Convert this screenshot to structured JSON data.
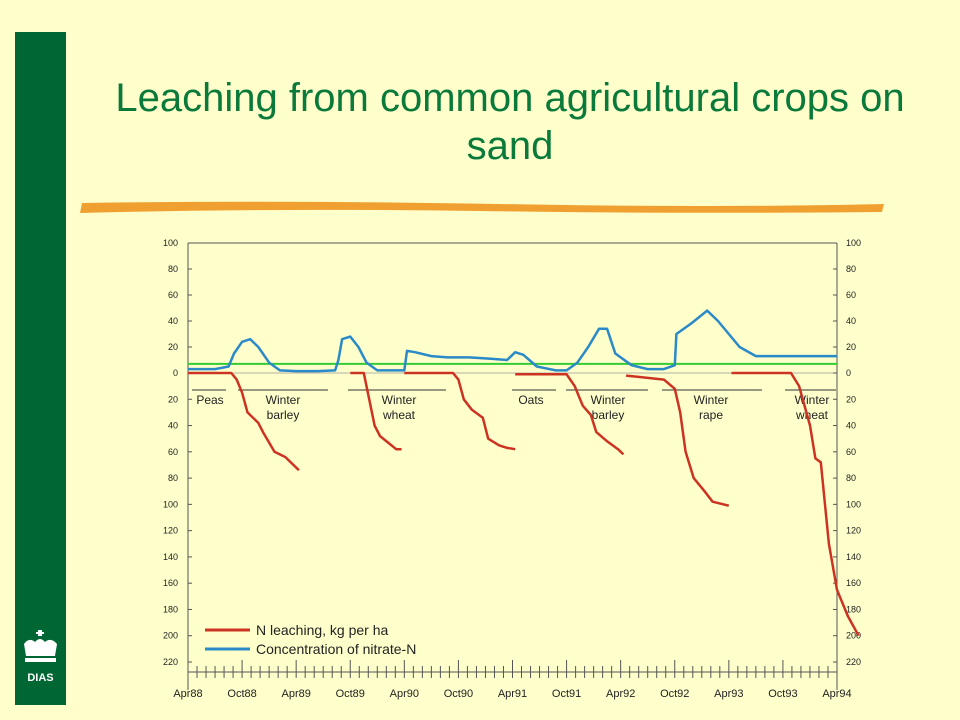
{
  "slide": {
    "title": "Leaching from common agricultural crops on sand",
    "logo_text": "DIAS"
  },
  "colors": {
    "background": "#ffffcc",
    "sidebar": "#006633",
    "title": "#0a7a3a",
    "divider": "#f0a030",
    "leaching": "#cc3322",
    "concentration": "#2a8ac8",
    "reference": "#33cc33"
  },
  "chart_data": {
    "type": "line",
    "x_tick_labels": [
      "Apr88",
      "Oct88",
      "Apr89",
      "Oct89",
      "Apr90",
      "Oct90",
      "Apr91",
      "Oct91",
      "Apr92",
      "Oct92",
      "Apr93",
      "Oct93",
      "Apr94"
    ],
    "upper_axis": {
      "range": [
        0,
        100
      ],
      "ticks": [
        "100",
        "80",
        "60",
        "40",
        "20",
        "0"
      ]
    },
    "lower_axis": {
      "range": [
        0,
        220
      ],
      "inverted": true,
      "ticks": [
        "20",
        "40",
        "60",
        "80",
        "100",
        "120",
        "140",
        "160",
        "180",
        "200",
        "220"
      ]
    },
    "reference_line_value": 7,
    "crops": [
      "Peas",
      "Winter barley",
      "Winter wheat",
      "Oats",
      "Winter barley",
      "Winter rape",
      "Winter wheat"
    ],
    "series": [
      {
        "name": "Concentration of nitrate-N",
        "axis": "upper",
        "points": [
          [
            0,
            3
          ],
          [
            0.5,
            3
          ],
          [
            0.75,
            5
          ],
          [
            0.85,
            15
          ],
          [
            1.0,
            24
          ],
          [
            1.15,
            26
          ],
          [
            1.3,
            20
          ],
          [
            1.5,
            8
          ],
          [
            1.7,
            2
          ],
          [
            2.0,
            1.5
          ],
          [
            2.4,
            1.5
          ],
          [
            2.72,
            2
          ],
          [
            2.78,
            10
          ],
          [
            2.85,
            26
          ],
          [
            3.0,
            28
          ],
          [
            3.15,
            20
          ],
          [
            3.3,
            8
          ],
          [
            3.5,
            2
          ],
          [
            3.8,
            2
          ],
          [
            4.0,
            2
          ],
          [
            4.05,
            17
          ],
          [
            4.2,
            16
          ],
          [
            4.5,
            13
          ],
          [
            4.8,
            12
          ],
          [
            5.2,
            12
          ],
          [
            5.6,
            11
          ],
          [
            5.9,
            10
          ],
          [
            6.05,
            16
          ],
          [
            6.2,
            14
          ],
          [
            6.45,
            5
          ],
          [
            6.8,
            2
          ],
          [
            7.0,
            2
          ],
          [
            7.2,
            8
          ],
          [
            7.4,
            20
          ],
          [
            7.6,
            34
          ],
          [
            7.75,
            34
          ],
          [
            7.9,
            15
          ],
          [
            8.2,
            6
          ],
          [
            8.5,
            3
          ],
          [
            8.8,
            3
          ],
          [
            9.0,
            6
          ],
          [
            9.03,
            30
          ],
          [
            9.3,
            38
          ],
          [
            9.6,
            48
          ],
          [
            9.8,
            40
          ],
          [
            10.0,
            30
          ],
          [
            10.2,
            20
          ],
          [
            10.5,
            13
          ],
          [
            12.0,
            13
          ]
        ]
      },
      {
        "name": "N leaching, kg per ha",
        "axis": "lower",
        "segments": [
          [
            [
              0,
              0
            ],
            [
              0.8,
              0
            ],
            [
              0.9,
              5
            ],
            [
              1.0,
              15
            ],
            [
              1.1,
              30
            ],
            [
              1.3,
              38
            ],
            [
              1.4,
              46
            ],
            [
              1.6,
              60
            ],
            [
              1.8,
              64
            ],
            [
              1.95,
              70
            ],
            [
              2.05,
              74
            ]
          ],
          [
            [
              3.0,
              0
            ],
            [
              3.25,
              0
            ],
            [
              3.35,
              20
            ],
            [
              3.45,
              40
            ],
            [
              3.55,
              48
            ],
            [
              3.7,
              53
            ],
            [
              3.85,
              58
            ],
            [
              3.95,
              58
            ]
          ],
          [
            [
              4.0,
              0
            ],
            [
              4.9,
              0
            ],
            [
              5.0,
              5
            ],
            [
              5.1,
              20
            ],
            [
              5.25,
              28
            ],
            [
              5.45,
              34
            ],
            [
              5.55,
              50
            ],
            [
              5.75,
              55
            ],
            [
              5.9,
              57
            ],
            [
              6.05,
              58
            ]
          ],
          [
            [
              6.05,
              1
            ],
            [
              7.0,
              1
            ],
            [
              7.15,
              10
            ],
            [
              7.3,
              25
            ],
            [
              7.45,
              32
            ],
            [
              7.55,
              45
            ],
            [
              7.75,
              52
            ],
            [
              7.95,
              58
            ],
            [
              8.05,
              62
            ]
          ],
          [
            [
              8.1,
              2
            ],
            [
              8.8,
              5
            ],
            [
              9.0,
              12
            ],
            [
              9.1,
              30
            ],
            [
              9.2,
              60
            ],
            [
              9.35,
              80
            ],
            [
              9.55,
              90
            ],
            [
              9.7,
              98
            ],
            [
              10.0,
              101
            ]
          ],
          [
            [
              10.05,
              0
            ],
            [
              11.15,
              0
            ],
            [
              11.3,
              10
            ],
            [
              11.5,
              40
            ],
            [
              11.6,
              65
            ],
            [
              11.7,
              68
            ],
            [
              11.85,
              130
            ],
            [
              12.0,
              165
            ],
            [
              12.2,
              185
            ],
            [
              12.4,
              200
            ]
          ]
        ]
      }
    ],
    "legend": [
      {
        "label": "N leaching, kg per ha",
        "color": "#cc3322"
      },
      {
        "label": "Concentration  of nitrate-N",
        "color": "#2a8ac8"
      }
    ]
  }
}
